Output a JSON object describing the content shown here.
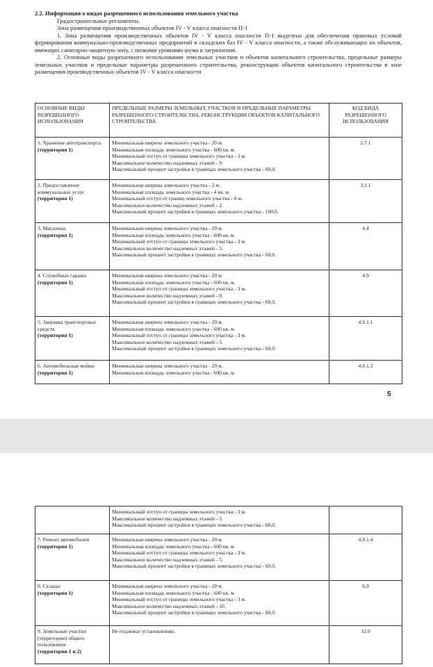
{
  "page1": {
    "heading": "2.2. Информация о видах разрешенного использования земельного участка",
    "subheading": "Градостроительные регламенты.",
    "zone": "Зона размещения производственных объектов IV - V класса опасности П-1",
    "paragraphs": [
      "1. Зона размещения производственных объектов IV - V класса опасности П-1 выделена для обеспечения правовых условий формирования коммунально-производственных предприятий и складских баз IV - V класса опасности, а также обслуживающих их объектов, имеющих санитарно-защитную зону, с низкими уровнями шума и загрязнения.",
      "2. Основные виды разрешенного использования земельных участков и объектов капитального строительства, предельные размеры земельных участков и предельные параметры разрешенного строительства, реконструкции объектов капитального строительства в зоне размещения производственных объектов IV - V класса опасности"
    ],
    "table": {
      "headers": [
        "ОСНОВНЫЕ ВИДЫ РАЗРЕШЕННОГО ИСПОЛЬЗОВАНИЯ",
        "ПРЕДЕЛЬНЫЕ РАЗМЕРЫ ЗЕМЕЛЬНЫХ УЧАСТКОВ И ПРЕДЕЛЬНЫЕ ПАРАМЕТРЫ РАЗРЕШЕННОГО СТРОИТЕЛЬСТВА, РЕКОНСТРУКЦИИ ОБЪЕКТОВ КАПИТАЛЬНОГО СТРОИТЕЛЬСТВА",
        "КОД ВИДА РАЗРЕШЕННОГО ИСПОЛЬЗОВАНИЯ"
      ],
      "rows": [
        {
          "name": "1. Хранение автотранспорта",
          "territory": "(территория 1)",
          "params": [
            "Минимальная ширина земельного участка - 20 м.",
            "Минимальная площадь земельного участка - 600 кв. м.",
            "Минимальный отступ от границы земельного участка - 3 м.",
            "Максимальное количество надземных этажей - 9.",
            "Максимальный процент застройки в границах земельного участка - 60,0."
          ],
          "code": "2.7.1"
        },
        {
          "name": "2. Предоставление коммунальных услуг",
          "territory": "(территория 1)",
          "params": [
            "Минимальная ширина земельного участка - 2 м.",
            "Минимальная площадь земельного участка - 4 кв. м.",
            "Минимальный отступ от границ земельного участка - 0 м.",
            "Максимальное количество надземных этажей - 2.",
            "Максимальный процент застройки в границах земельного участка - 100,0."
          ],
          "code": "3.1.1"
        },
        {
          "name": "3. Магазины",
          "territory": "(территория 1)",
          "params": [
            "Минимальная ширина земельного участка - 20 м.",
            "Минимальная площадь земельного участка - 600 кв. м.",
            "Минимальный отступ от границы земельного участка - 3 м.",
            "Максимальное количество надземных этажей - 5.",
            "Максимальный процент застройки в границах земельного участка - 60,0."
          ],
          "code": "4.4"
        },
        {
          "name": "4. Служебные гаражи",
          "territory": "(территория 1)",
          "params": [
            "Минимальная ширина земельного участка - 20 м.",
            "Минимальная площадь земельного участка - 600 кв. м.",
            "Минимальный отступ от границы земельного участка - 3 м.",
            "Максимальное количество надземных этажей - 9.",
            "Максимальный процент застройки в границах земельного участка - 60,0."
          ],
          "code": "4.9"
        },
        {
          "name": "5. Заправка транспортных средств",
          "territory": "(территория 1)",
          "params": [
            "Минимальная ширина земельного участка - 20 м.",
            "Минимальная площадь земельного участка - 600 кв. м.",
            "Минимальный отступ от границы земельного участка - 3 м.",
            "Максимальное количество надземных этажей - 5.",
            "Максимальный процент застройки в границах земельного участка - 60,0."
          ],
          "code": "4.9.1.1"
        },
        {
          "name": "6. Автомобильные мойки",
          "territory": "(территория 1)",
          "params": [
            "Минимальная ширина земельного участка - 20 м.",
            "Минимальная площадь земельного участка - 600 кв. м."
          ],
          "code": "4.9.1.3"
        }
      ]
    },
    "page_number": "5"
  },
  "page2": {
    "table": {
      "continuation": [
        "Минимальный отступ от границы земельного участка - 3 м.",
        "Максимальное количество надземных этажей - 5.",
        "Максимальный процент застройки в границах земельного участка - 60,0."
      ],
      "rows": [
        {
          "name": "7. Ремонт автомобилей",
          "territory": "(территория 1)",
          "params": [
            "Минимальная ширина земельного участка - 20 м.",
            "Минимальная площадь земельного участка - 600 кв. м.",
            "Минимальный отступ от границы земельного участка - 3 м.",
            "Максимальное количество надземных этажей - 5.",
            "Максимальный процент застройки в границах земельного участка - 60,0."
          ],
          "code": "4.9.1.4"
        },
        {
          "name": "8. Склады",
          "territory": "(территория 1)",
          "params": [
            "Минимальная ширина земельного участка - 20 м.",
            "Минимальная площадь земельного участка - 600 кв. м.",
            "Минимальный отступ от границы земельного участка - 3 м.",
            "Максимальное количество надземных этажей - 10.",
            "Максимальный процент застройки в границах земельного участка - 60,0."
          ],
          "code": "6.9"
        },
        {
          "name": "9. Земельные участки (территории) общего пользования",
          "territory": "(территории 1 и 2)",
          "params": [
            "Не подлежат установлению."
          ],
          "code": "12.0"
        }
      ]
    }
  }
}
